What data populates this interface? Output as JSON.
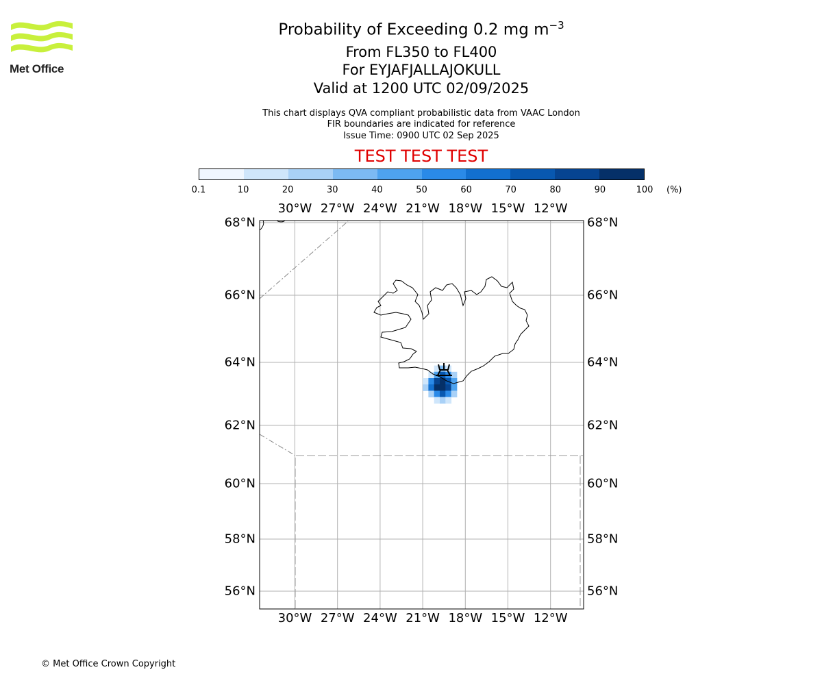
{
  "logo": {
    "text": "Met Office",
    "color": "#c8f03c"
  },
  "title": {
    "main": "Probability of Exceeding 0.2 mg m",
    "main_sup": "−3",
    "levels": "From FL350 to FL400",
    "volcano": "For EYJAFJALLAJOKULL",
    "valid": "Valid at 1200 UTC 02/09/2025"
  },
  "subtitle": {
    "line1": "This chart displays QVA compliant probabilistic data from VAAC London",
    "line2": "FIR boundaries are indicated for reference",
    "line3": "Issue Time: 0900 UTC 02 Sep 2025"
  },
  "test_banner": "TEST TEST TEST",
  "colorbar": {
    "labels": [
      "0.1",
      "10",
      "20",
      "30",
      "40",
      "50",
      "60",
      "70",
      "80",
      "90",
      "100"
    ],
    "unit": "(%)",
    "colors": [
      "#f0f7ff",
      "#cfe6fb",
      "#a9d1f7",
      "#7cbaf3",
      "#4ea3ef",
      "#2a8ae8",
      "#1270d0",
      "#0858b0",
      "#064491",
      "#053068"
    ]
  },
  "axes": {
    "lon_labels": [
      "30°W",
      "27°W",
      "24°W",
      "21°W",
      "18°W",
      "15°W",
      "12°W"
    ],
    "lat_labels": [
      "68°N",
      "66°N",
      "64°N",
      "62°N",
      "60°N",
      "58°N",
      "56°N"
    ]
  },
  "map_data": {
    "lon_range": [
      -32.5,
      -9.9
    ],
    "lat_range": [
      55.5,
      68.1
    ],
    "volcano": {
      "name": "EYJAFJALLAJOKULL",
      "lon": -19.6,
      "lat": 63.63
    },
    "probability_grid": [
      {
        "lat": 63.8,
        "lons": [
          -20.0,
          -19.6,
          -19.2
        ],
        "values": [
          15,
          35,
          15
        ]
      },
      {
        "lat": 63.6,
        "lons": [
          -20.4,
          -20.0,
          -19.6,
          -19.2,
          -18.8
        ],
        "values": [
          10,
          45,
          70,
          55,
          20
        ]
      },
      {
        "lat": 63.4,
        "lons": [
          -20.8,
          -20.4,
          -20.0,
          -19.6,
          -19.2,
          -18.8
        ],
        "values": [
          15,
          55,
          85,
          90,
          75,
          40
        ]
      },
      {
        "lat": 63.2,
        "lons": [
          -20.8,
          -20.4,
          -20.0,
          -19.6,
          -19.2,
          -18.8
        ],
        "values": [
          20,
          60,
          90,
          95,
          85,
          45
        ]
      },
      {
        "lat": 63.0,
        "lons": [
          -20.4,
          -20.0,
          -19.6,
          -19.2,
          -18.8
        ],
        "values": [
          25,
          55,
          70,
          50,
          20
        ]
      },
      {
        "lat": 62.8,
        "lons": [
          -20.0,
          -19.6,
          -19.2
        ],
        "values": [
          10,
          25,
          12
        ]
      }
    ]
  },
  "copyright": "© Met Office Crown Copyright"
}
